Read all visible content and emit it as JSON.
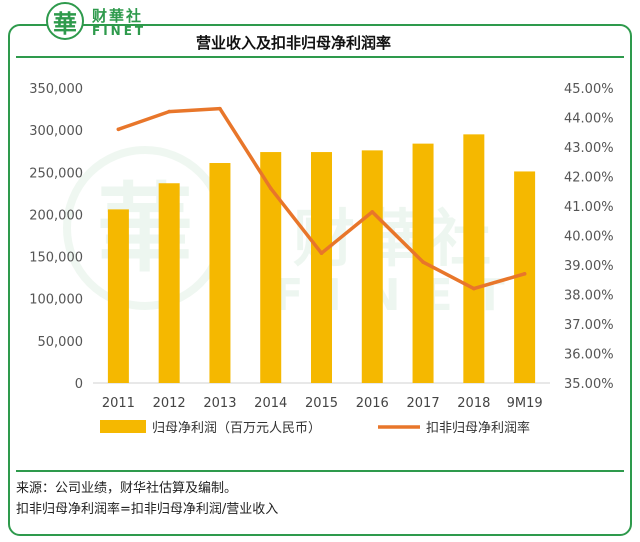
{
  "brand": {
    "logo_char": "華",
    "name_cn": "财華社",
    "name_en": "FINET"
  },
  "watermark": {
    "name_cn": "财華社",
    "name_en": "FINET"
  },
  "colors": {
    "brand_green": "#2e9a4c",
    "bar": "#f5b800",
    "line": "#e8762a"
  },
  "chart_data": {
    "type": "bar",
    "title": "营业收入及扣非归母净利润率",
    "categories": [
      "2011",
      "2012",
      "2013",
      "2014",
      "2015",
      "2016",
      "2017",
      "2018",
      "9M19"
    ],
    "series": [
      {
        "name": "归母净利润（百万元人民币）",
        "type": "bar",
        "axis": "left",
        "values": [
          206000,
          237000,
          261000,
          274000,
          274000,
          276000,
          284000,
          295000,
          251000
        ]
      },
      {
        "name": "扣非归母净利润率",
        "type": "line",
        "axis": "right",
        "values": [
          43.6,
          44.2,
          44.3,
          41.6,
          39.4,
          40.8,
          39.1,
          38.2,
          38.7
        ]
      }
    ],
    "y_left": {
      "range": [
        0,
        350000
      ],
      "ticks": [
        0,
        50000,
        100000,
        150000,
        200000,
        250000,
        300000,
        350000
      ],
      "tick_labels": [
        "0",
        "50,000",
        "100,000",
        "150,000",
        "200,000",
        "250,000",
        "300,000",
        "350,000"
      ]
    },
    "y_right": {
      "range": [
        35,
        45
      ],
      "ticks": [
        35,
        36,
        37,
        38,
        39,
        40,
        41,
        42,
        43,
        44,
        45
      ],
      "tick_labels": [
        "35.00%",
        "36.00%",
        "37.00%",
        "38.00%",
        "39.00%",
        "40.00%",
        "41.00%",
        "42.00%",
        "43.00%",
        "44.00%",
        "45.00%"
      ]
    },
    "grid": false,
    "legend_position": "bottom"
  },
  "notes": {
    "source": "来源：公司业绩，财华社估算及编制。",
    "definition": "扣非归母净利润率=扣非归母净利润/营业收入"
  }
}
